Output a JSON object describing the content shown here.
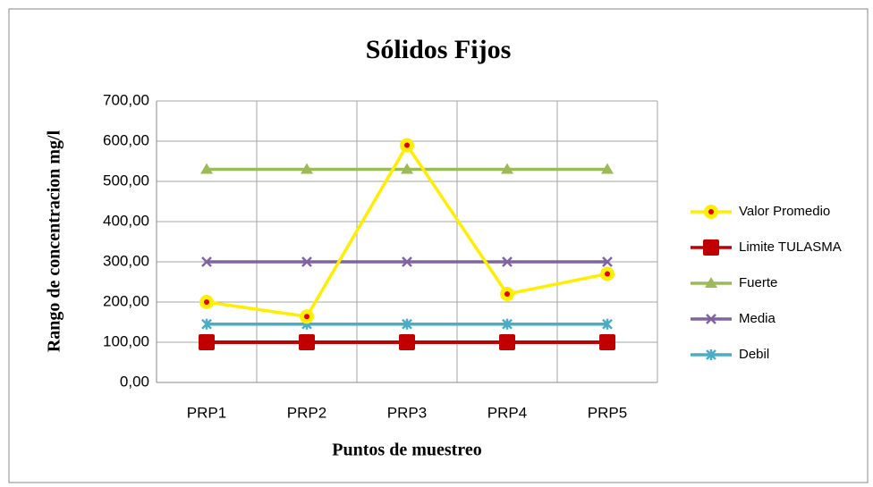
{
  "chart_data": {
    "type": "line",
    "title": "Sólidos Fijos",
    "x_label": "Puntos de muestreo",
    "y_label": "Rango de  concentracion mg/l",
    "categories": [
      "PRP1",
      "PRP2",
      "PRP3",
      "PRP4",
      "PRP5"
    ],
    "series": [
      {
        "name": "Valor Promedio",
        "color": "#ffee00",
        "marker": "star",
        "values": [
          200,
          164,
          590,
          220,
          270
        ]
      },
      {
        "name": "Limite TULASMA",
        "color": "#c00000",
        "marker": "square",
        "values": [
          100,
          100,
          100,
          100,
          100
        ]
      },
      {
        "name": "Fuerte",
        "color": "#9bbb59",
        "marker": "triangle",
        "values": [
          530,
          530,
          530,
          530,
          530
        ]
      },
      {
        "name": "Media",
        "color": "#8064a2",
        "marker": "x",
        "values": [
          300,
          300,
          300,
          300,
          300
        ]
      },
      {
        "name": "Debil",
        "color": "#4bacc6",
        "marker": "asterisk",
        "values": [
          145,
          145,
          145,
          145,
          145
        ]
      }
    ],
    "ylim": [
      0,
      700
    ],
    "yticks": [
      {
        "value": 0,
        "label": "0,00"
      },
      {
        "value": 100,
        "label": "100,00"
      },
      {
        "value": 200,
        "label": "200,00"
      },
      {
        "value": 300,
        "label": "300,00"
      },
      {
        "value": 400,
        "label": "400,00"
      },
      {
        "value": 500,
        "label": "500,00"
      },
      {
        "value": 600,
        "label": "600,00"
      },
      {
        "value": 700,
        "label": "700,00"
      }
    ],
    "grid": true,
    "legend": "right"
  }
}
